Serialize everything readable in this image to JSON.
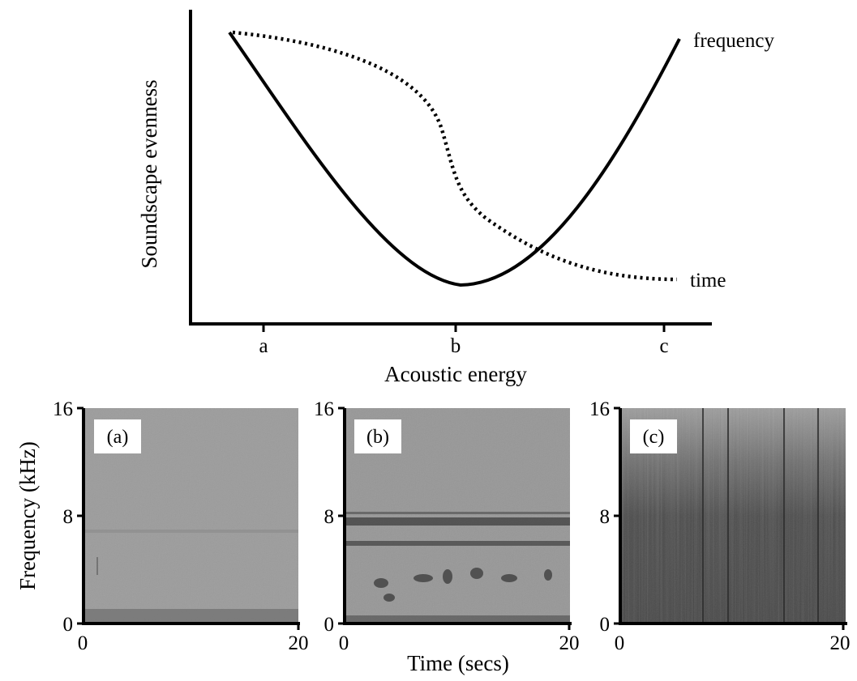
{
  "top_diagram": {
    "y_axis_label": "Soundscape evenness",
    "x_axis_label": "Acoustic energy",
    "x_ticks": [
      "a",
      "b",
      "c"
    ],
    "curves": [
      {
        "label": "frequency",
        "style": "solid"
      },
      {
        "label": "time",
        "style": "dotted"
      }
    ]
  },
  "spectrograms": {
    "y_axis_label": "Frequency (kHz)",
    "x_axis_label": "Time (secs)",
    "y_ticks": [
      "0",
      "8",
      "16"
    ],
    "x_ticks": [
      "0",
      "20"
    ],
    "panels": [
      {
        "label": "(a)",
        "background": "#9c9c9c"
      },
      {
        "label": "(b)",
        "background": "#979797"
      },
      {
        "label": "(c)",
        "background": "#4a4a4a"
      }
    ]
  }
}
